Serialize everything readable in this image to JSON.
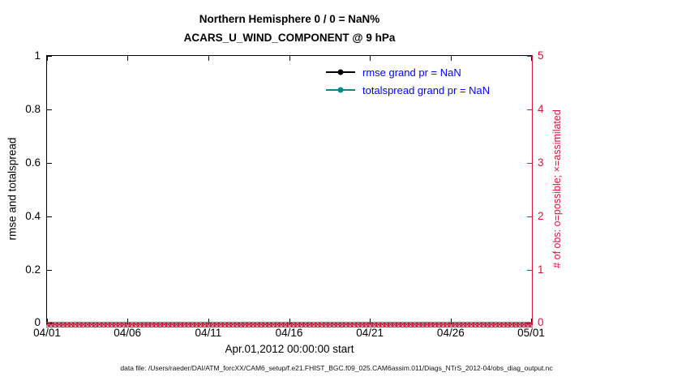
{
  "title": {
    "line1": "Northern Hemisphere 0 / 0 = NaN%",
    "line2": "ACARS_U_WIND_COMPONENT @ 9 hPa"
  },
  "axes": {
    "left": {
      "label": "rmse and totalspread",
      "ticks": [
        "0",
        "0.2",
        "0.4",
        "0.6",
        "0.8",
        "1"
      ]
    },
    "right": {
      "label": "# of obs: o=possible; ×=assimilated",
      "ticks": [
        "0",
        "1",
        "2",
        "3",
        "4",
        "5"
      ]
    },
    "x": {
      "label": "Apr.01,2012 00:00:00 start",
      "ticks": [
        "04/01",
        "04/06",
        "04/11",
        "04/16",
        "04/21",
        "04/26",
        "05/01"
      ]
    }
  },
  "legend": [
    {
      "label": "rmse grand pr = NaN",
      "line_color": "#000000"
    },
    {
      "label": "totalspread grand pr = NaN",
      "line_color": "#008b8b"
    }
  ],
  "colors": {
    "crimson": "#dc143c",
    "teal": "#008b8b",
    "legend_text": "#0000ff",
    "axis": "#000000"
  },
  "footer": "data file: /Users/raeder/DAI/ATM_forcXX/CAM6_setup/f.e21.FHIST_BGC.f09_025.CAM6assim.011/Diags_NTrS_2012-04/obs_diag_output.nc",
  "chart_data": {
    "type": "line",
    "title": "Northern Hemisphere 0 / 0 = NaN% | ACARS_U_WIND_COMPONENT @ 9 hPa",
    "xlabel": "Apr.01,2012 00:00:00 start",
    "x_tick_labels": [
      "04/01",
      "04/06",
      "04/11",
      "04/16",
      "04/21",
      "04/26",
      "05/01"
    ],
    "ylabel_left": "rmse and totalspread",
    "ylim_left": [
      0,
      1
    ],
    "ylabel_right": "# of obs: o=possible; ×=assimilated",
    "ylim_right": [
      0,
      5
    ],
    "grid": false,
    "legend_position": "upper-center-right inside plot, no box",
    "series": [
      {
        "name": "rmse",
        "axis": "left",
        "summary": "grand pr = NaN",
        "values": null
      },
      {
        "name": "totalspread",
        "axis": "left",
        "summary": "grand pr = NaN",
        "values": null
      },
      {
        "name": "possible obs (o markers)",
        "axis": "right",
        "constant_value": 0,
        "n_points": 121
      },
      {
        "name": "assimilated obs (× markers)",
        "axis": "right",
        "constant_value": 0,
        "n_points": 121
      }
    ]
  }
}
